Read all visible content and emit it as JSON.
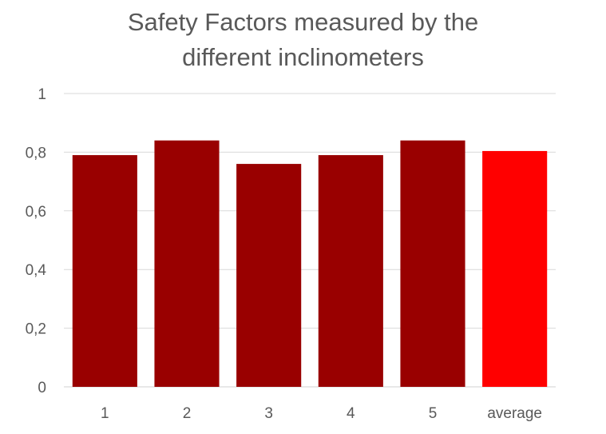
{
  "chart_data": {
    "type": "bar",
    "title_lines": [
      "Safety Factors measured by the",
      "different inclinometers"
    ],
    "categories": [
      "1",
      "2",
      "3",
      "4",
      "5",
      "average"
    ],
    "values": [
      0.79,
      0.84,
      0.76,
      0.79,
      0.84,
      0.804
    ],
    "bar_colors": [
      "#990000",
      "#990000",
      "#990000",
      "#990000",
      "#990000",
      "#ff0000"
    ],
    "ylim": [
      0,
      1
    ],
    "yticks": [
      0,
      0.2,
      0.4,
      0.6,
      0.8,
      1
    ],
    "ytick_labels": [
      "0",
      "0,2",
      "0,4",
      "0,6",
      "0,8",
      "1"
    ],
    "grid": true,
    "legend": "none",
    "gridline_color": "#d9d9d9",
    "text_color": "#595959"
  }
}
